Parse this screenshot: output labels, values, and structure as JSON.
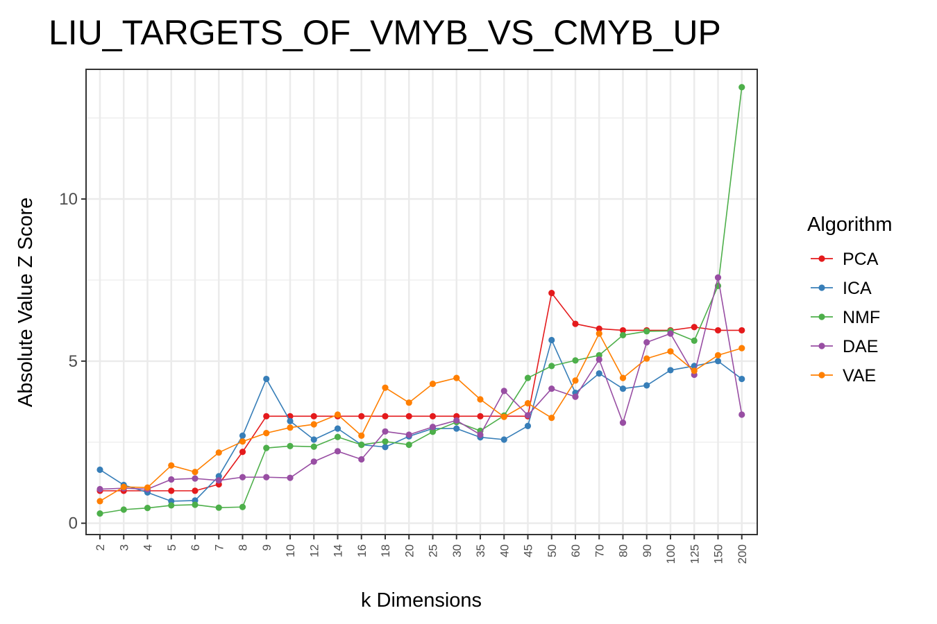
{
  "chart_data": {
    "type": "line",
    "title": "LIU_TARGETS_OF_VMYB_VS_CMYB_UP",
    "xlabel": "k Dimensions",
    "ylabel": "Absolute Value Z Score",
    "categories": [
      "2",
      "3",
      "4",
      "5",
      "6",
      "7",
      "8",
      "9",
      "10",
      "12",
      "14",
      "16",
      "18",
      "20",
      "25",
      "30",
      "35",
      "40",
      "45",
      "50",
      "60",
      "70",
      "80",
      "90",
      "100",
      "125",
      "150",
      "200"
    ],
    "yticks": [
      0,
      5,
      10
    ],
    "ylim": [
      -0.35,
      14.0
    ],
    "grid": true,
    "legend": {
      "title": "Algorithm",
      "position": "right"
    },
    "series": [
      {
        "name": "PCA",
        "color": "#e41a1c",
        "values": [
          1.0,
          1.0,
          1.0,
          1.0,
          1.0,
          1.2,
          2.2,
          3.3,
          3.3,
          3.3,
          3.3,
          3.3,
          3.3,
          3.3,
          3.3,
          3.3,
          3.3,
          3.3,
          3.3,
          7.1,
          6.15,
          6.0,
          5.95,
          5.95,
          5.95,
          6.05,
          5.95,
          5.95
        ]
      },
      {
        "name": "ICA",
        "color": "#377eb8",
        "values": [
          1.65,
          1.18,
          0.95,
          0.68,
          0.7,
          1.45,
          2.7,
          4.45,
          3.15,
          2.58,
          2.92,
          2.42,
          2.35,
          2.68,
          2.92,
          2.92,
          2.65,
          2.58,
          3.0,
          5.65,
          4.02,
          4.62,
          4.15,
          4.25,
          4.72,
          4.85,
          5.0,
          4.45
        ]
      },
      {
        "name": "NMF",
        "color": "#4daf4a",
        "values": [
          0.3,
          0.42,
          0.47,
          0.55,
          0.57,
          0.48,
          0.5,
          2.32,
          2.38,
          2.36,
          2.66,
          2.42,
          2.52,
          2.42,
          2.82,
          3.12,
          2.85,
          3.32,
          4.48,
          4.85,
          5.02,
          5.18,
          5.8,
          5.92,
          5.93,
          5.63,
          7.32,
          13.45
        ]
      },
      {
        "name": "DAE",
        "color": "#984ea3",
        "values": [
          1.05,
          1.08,
          1.05,
          1.35,
          1.38,
          1.32,
          1.42,
          1.42,
          1.4,
          1.9,
          2.22,
          1.97,
          2.83,
          2.73,
          2.97,
          3.17,
          2.73,
          4.08,
          3.33,
          4.15,
          3.9,
          5.05,
          3.1,
          5.58,
          5.85,
          4.58,
          7.58,
          3.35
        ]
      },
      {
        "name": "VAE",
        "color": "#ff7f00",
        "values": [
          0.68,
          1.12,
          1.1,
          1.78,
          1.58,
          2.18,
          2.52,
          2.78,
          2.95,
          3.05,
          3.35,
          2.7,
          4.18,
          3.72,
          4.3,
          4.48,
          3.82,
          3.28,
          3.7,
          3.25,
          4.4,
          5.85,
          4.48,
          5.08,
          5.3,
          4.7,
          5.18,
          5.4
        ]
      }
    ]
  }
}
